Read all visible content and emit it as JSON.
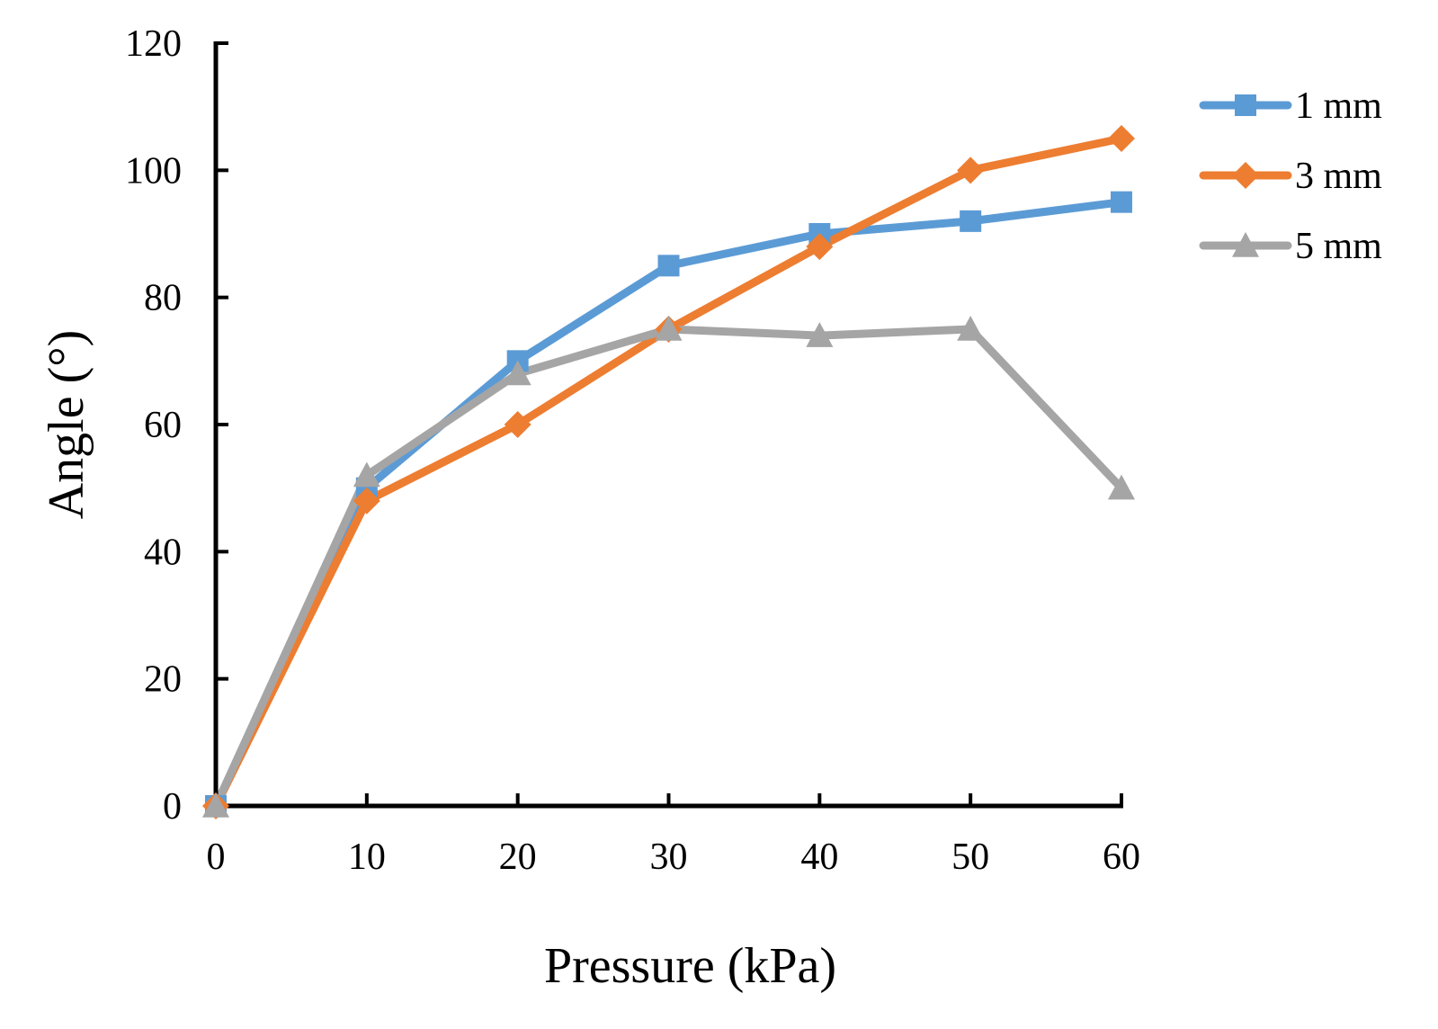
{
  "chart_data": {
    "type": "line",
    "xlabel": "Pressure (kPa)",
    "ylabel": "Angle (°)",
    "x": [
      0,
      10,
      20,
      30,
      40,
      50,
      60
    ],
    "xticks": [
      "0",
      "10",
      "20",
      "30",
      "40",
      "50",
      "60"
    ],
    "yticks": [
      "0",
      "20",
      "40",
      "60",
      "80",
      "100",
      "120"
    ],
    "xlim": [
      0,
      60
    ],
    "ylim": [
      0,
      120
    ],
    "grid": false,
    "legend_position": "right",
    "series": [
      {
        "name": "1 mm",
        "color": "#5B9BD5",
        "marker": "square",
        "values": [
          0,
          50,
          70,
          85,
          90,
          92,
          95
        ]
      },
      {
        "name": "3 mm",
        "color": "#ED7D31",
        "marker": "diamond",
        "values": [
          0,
          48,
          60,
          75,
          88,
          100,
          105
        ]
      },
      {
        "name": "5 mm",
        "color": "#A5A5A5",
        "marker": "triangle",
        "values": [
          0,
          52,
          68,
          75,
          74,
          75,
          50
        ]
      }
    ]
  }
}
